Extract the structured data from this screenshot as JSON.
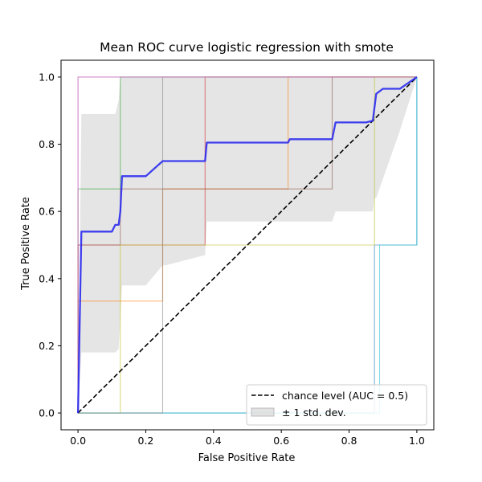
{
  "chart_data": {
    "type": "line",
    "title": "Mean ROC curve logistic regression with smote",
    "xlabel": "False Positive Rate",
    "ylabel": "True Positive Rate",
    "xlim": [
      -0.05,
      1.05
    ],
    "ylim": [
      -0.05,
      1.05
    ],
    "xticks": [
      "0.0",
      "0.2",
      "0.4",
      "0.6",
      "0.8",
      "1.0"
    ],
    "yticks": [
      "0.0",
      "0.2",
      "0.4",
      "0.6",
      "0.8",
      "1.0"
    ],
    "grid": false,
    "legend_position": "lower-right",
    "colors": {
      "mean": "#2b2bf0",
      "band": "#d0d0d0",
      "chance": "#000000"
    },
    "mean_curve": {
      "x": [
        0.0,
        0.01,
        0.02,
        0.05,
        0.1,
        0.11,
        0.12,
        0.125,
        0.13,
        0.2,
        0.25,
        0.3,
        0.375,
        0.38,
        0.45,
        0.5,
        0.55,
        0.62,
        0.625,
        0.7,
        0.75,
        0.76,
        0.8,
        0.85,
        0.87,
        0.875,
        0.88,
        0.9,
        0.95,
        1.0
      ],
      "y": [
        0.0,
        0.54,
        0.54,
        0.54,
        0.54,
        0.56,
        0.56,
        0.6,
        0.705,
        0.705,
        0.75,
        0.75,
        0.75,
        0.805,
        0.805,
        0.805,
        0.805,
        0.805,
        0.815,
        0.815,
        0.815,
        0.865,
        0.865,
        0.865,
        0.87,
        0.91,
        0.95,
        0.965,
        0.965,
        1.0
      ]
    },
    "band": {
      "x": [
        0.0,
        0.01,
        0.11,
        0.12,
        0.125,
        0.13,
        0.2,
        0.25,
        0.26,
        0.375,
        0.38,
        0.62,
        0.625,
        0.75,
        0.76,
        0.87,
        0.875,
        0.88,
        0.95,
        1.0
      ],
      "upper": [
        0.0,
        0.89,
        0.89,
        0.93,
        1.0,
        1.0,
        1.0,
        1.0,
        1.0,
        1.0,
        1.0,
        1.0,
        1.0,
        1.0,
        1.0,
        1.0,
        1.0,
        1.0,
        1.0,
        1.0
      ],
      "lower": [
        0.0,
        0.18,
        0.18,
        0.19,
        0.28,
        0.38,
        0.38,
        0.44,
        0.44,
        0.47,
        0.57,
        0.57,
        0.57,
        0.57,
        0.6,
        0.6,
        0.64,
        0.64,
        0.84,
        1.0
      ]
    },
    "folds": [
      {
        "color": "#1f77b4",
        "x": [
          0.0,
          0.0,
          0.875,
          0.875,
          1.0,
          1.0
        ],
        "y": [
          0.0,
          0.0,
          0.0,
          0.5,
          0.5,
          1.0
        ]
      },
      {
        "color": "#ff7f0e",
        "x": [
          0.0,
          0.0,
          0.25,
          0.25,
          0.62,
          0.62,
          1.0
        ],
        "y": [
          0.0,
          0.333,
          0.333,
          0.667,
          0.667,
          1.0,
          1.0
        ]
      },
      {
        "color": "#2ca02c",
        "x": [
          0.0,
          0.0,
          0.125,
          0.125,
          0.375,
          0.375,
          1.0
        ],
        "y": [
          0.0,
          0.667,
          0.667,
          1.0,
          1.0,
          1.0,
          1.0
        ]
      },
      {
        "color": "#d62728",
        "x": [
          0.0,
          0.0,
          0.375,
          0.375,
          1.0
        ],
        "y": [
          0.0,
          0.5,
          0.5,
          1.0,
          1.0
        ]
      },
      {
        "color": "#9467bd",
        "x": [
          0.0,
          0.0,
          1.0
        ],
        "y": [
          0.0,
          1.0,
          1.0
        ]
      },
      {
        "color": "#8c564b",
        "x": [
          0.0,
          0.0,
          0.125,
          0.125,
          0.75,
          0.75,
          1.0
        ],
        "y": [
          0.0,
          0.5,
          0.5,
          0.667,
          0.667,
          1.0,
          1.0
        ]
      },
      {
        "color": "#bcbd22",
        "x": [
          0.0,
          0.0,
          0.125,
          0.125,
          0.875,
          0.875,
          1.0
        ],
        "y": [
          0.0,
          0.0,
          0.0,
          0.5,
          0.5,
          1.0,
          1.0
        ]
      },
      {
        "color": "#17becf",
        "x": [
          0.0,
          0.0,
          0.89,
          0.89,
          1.0,
          1.0
        ],
        "y": [
          0.0,
          0.0,
          0.0,
          0.5,
          0.5,
          1.0
        ]
      },
      {
        "color": "#7f7f7f",
        "x": [
          0.0,
          0.0,
          0.25,
          0.25,
          1.0
        ],
        "y": [
          0.0,
          0.0,
          0.0,
          1.0,
          1.0
        ]
      },
      {
        "color": "#e377c2",
        "x": [
          0.0,
          0.0,
          1.0
        ],
        "y": [
          0.0,
          1.0,
          1.0
        ]
      }
    ],
    "chance": {
      "x": [
        0.0,
        1.0
      ],
      "y": [
        0.0,
        1.0
      ]
    },
    "legend": [
      {
        "kind": "dashed-line",
        "label": "chance level (AUC = 0.5)"
      },
      {
        "kind": "patch",
        "label": "± 1 std. dev."
      }
    ]
  }
}
